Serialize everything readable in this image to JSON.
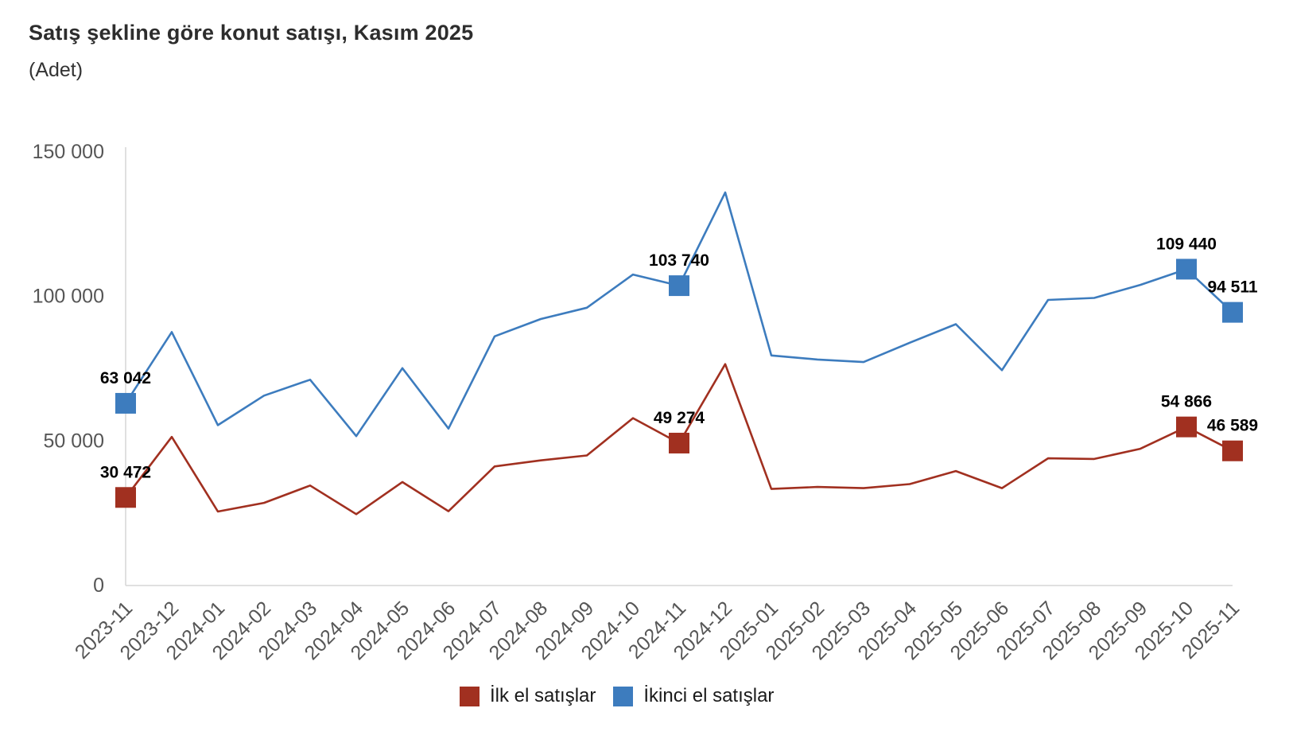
{
  "header": {
    "title": "Satış şekline göre konut satışı, Kasım 2025",
    "subtitle": "(Adet)"
  },
  "chart_data": {
    "type": "line",
    "title": "Satış şekline göre konut satışı, Kasım 2025",
    "subtitle": "(Adet)",
    "unit": "Adet",
    "grid": false,
    "legend_position": "bottom",
    "categories": [
      "2023-11",
      "2023-12",
      "2024-01",
      "2024-02",
      "2024-03",
      "2024-04",
      "2024-05",
      "2024-06",
      "2024-07",
      "2024-08",
      "2024-09",
      "2024-10",
      "2024-11",
      "2024-12",
      "2025-01",
      "2025-02",
      "2025-03",
      "2025-04",
      "2025-05",
      "2025-06",
      "2025-07",
      "2025-08",
      "2025-09",
      "2025-10",
      "2025-11"
    ],
    "y_axis": {
      "range": [
        0,
        150000
      ],
      "ticks": [
        {
          "value": 0,
          "label": "0"
        },
        {
          "value": 50000,
          "label": "50 000"
        },
        {
          "value": 100000,
          "label": "100 000"
        },
        {
          "value": 150000,
          "label": "150 000"
        }
      ]
    },
    "series": [
      {
        "name": "İlk el satışlar",
        "color": "#a13020",
        "values": [
          30472,
          51400,
          25600,
          28600,
          34600,
          24700,
          35800,
          25700,
          41200,
          43300,
          45000,
          57900,
          49274,
          76600,
          33400,
          34100,
          33700,
          35100,
          39600,
          33700,
          44000,
          43800,
          47300,
          54866,
          46589
        ],
        "labeled_points": [
          {
            "index": 0,
            "label": "30 472"
          },
          {
            "index": 12,
            "label": "49 274"
          },
          {
            "index": 23,
            "label": "54 866"
          },
          {
            "index": 24,
            "label": "46 589"
          }
        ]
      },
      {
        "name": "İkinci el satışlar",
        "color": "#3d7cbe",
        "values": [
          63042,
          87700,
          55500,
          65700,
          71200,
          51700,
          75200,
          54300,
          86200,
          92200,
          96100,
          107600,
          103740,
          136000,
          79600,
          78200,
          77300,
          84000,
          90400,
          74500,
          98800,
          99500,
          104000,
          109440,
          94511
        ],
        "labeled_points": [
          {
            "index": 0,
            "label": "63 042"
          },
          {
            "index": 12,
            "label": "103 740"
          },
          {
            "index": 23,
            "label": "109 440"
          },
          {
            "index": 24,
            "label": "94 511"
          }
        ]
      }
    ]
  },
  "legend": {
    "items": [
      {
        "label": "İlk el satışlar",
        "color": "#a13020"
      },
      {
        "label": "İkinci el satışlar",
        "color": "#3d7cbe"
      }
    ]
  }
}
